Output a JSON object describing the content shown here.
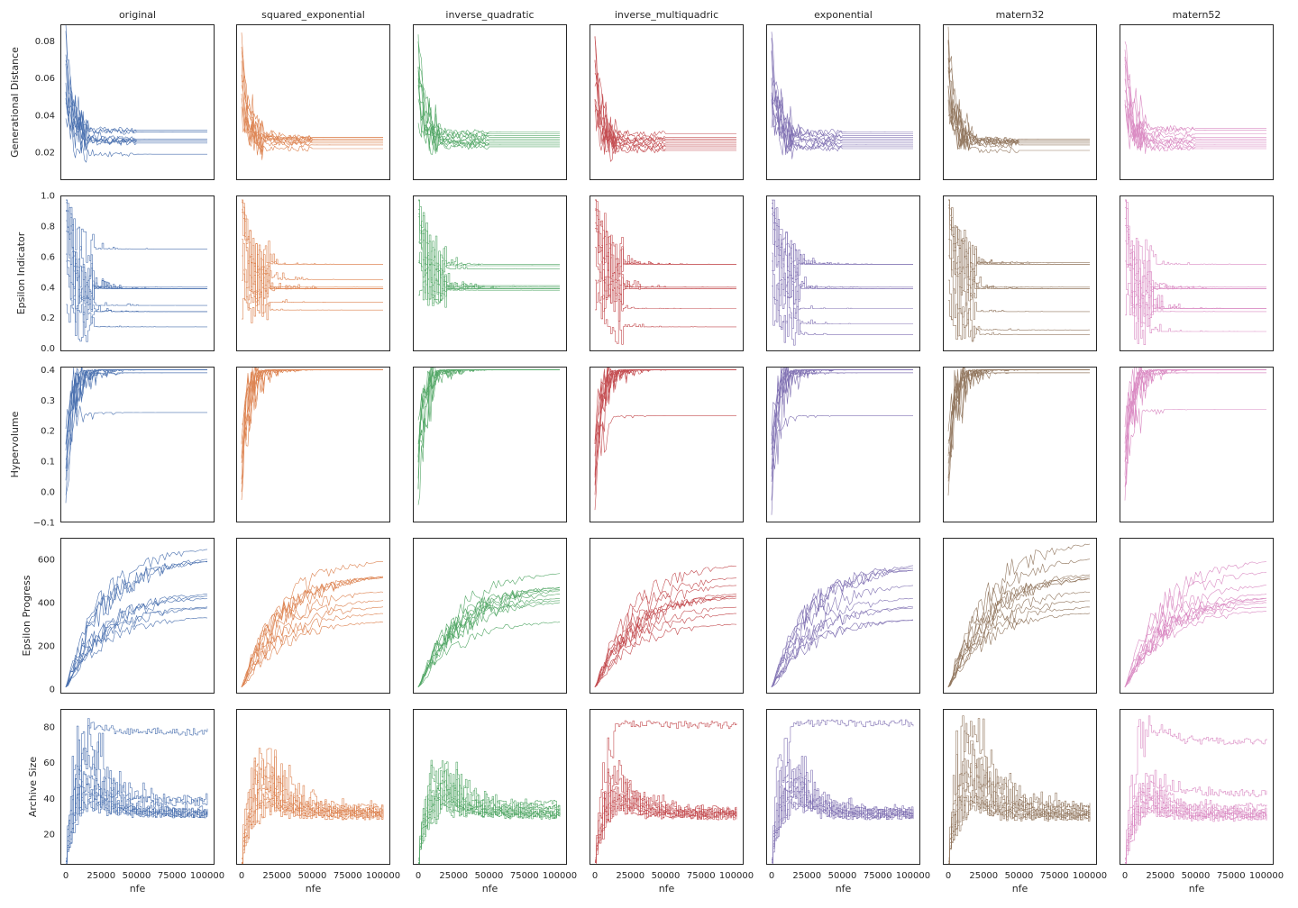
{
  "figure": {
    "columns": [
      "original",
      "squared_exponential",
      "inverse_quadratic",
      "inverse_multiquadric",
      "exponential",
      "matern32",
      "matern52"
    ],
    "column_colors": [
      "#4c72b0",
      "#dd8452",
      "#55a868",
      "#c44e52",
      "#8172b3",
      "#937860",
      "#da8bc3"
    ],
    "row_labels": [
      "Generational Distance",
      "Epsilon Indicator",
      "Hypervolume",
      "Epsilon Progress",
      "Archive Size"
    ],
    "x_label": "nfe",
    "x_ticks": [
      "0",
      "25000",
      "50000",
      "75000",
      "100000"
    ]
  },
  "chart_data": {
    "type": "line",
    "grid": false,
    "x_range": [
      0,
      100000
    ],
    "seeds_per_panel": 10,
    "rows": [
      {
        "metric": "Generational Distance",
        "ylabel": "Generational Distance",
        "ylim": [
          0.005,
          0.089
        ],
        "yticks": [
          0.02,
          0.04,
          0.06,
          0.08
        ],
        "ytick_labels": [
          "0.02",
          "0.04",
          "0.06",
          "0.08"
        ],
        "approx_final_values": {
          "original": [
            0.032,
            0.031,
            0.027,
            0.027,
            0.026,
            0.026,
            0.026,
            0.025,
            0.019,
            0.031
          ],
          "squared_exponential": [
            0.028,
            0.028,
            0.027,
            0.027,
            0.026,
            0.026,
            0.025,
            0.024,
            0.022,
            0.027
          ],
          "inverse_quadratic": [
            0.031,
            0.029,
            0.028,
            0.027,
            0.026,
            0.025,
            0.025,
            0.024,
            0.023,
            0.03
          ],
          "inverse_multiquadric": [
            0.03,
            0.028,
            0.027,
            0.026,
            0.025,
            0.024,
            0.023,
            0.022,
            0.021,
            0.027
          ],
          "exponential": [
            0.031,
            0.03,
            0.028,
            0.027,
            0.026,
            0.025,
            0.024,
            0.023,
            0.022,
            0.029
          ],
          "matern32": [
            0.027,
            0.027,
            0.026,
            0.026,
            0.026,
            0.025,
            0.025,
            0.024,
            0.021,
            0.026
          ],
          "matern52": [
            0.033,
            0.032,
            0.028,
            0.027,
            0.026,
            0.025,
            0.024,
            0.023,
            0.022,
            0.03
          ]
        },
        "approx_start_values": [
          0.082,
          0.08,
          0.075,
          0.07,
          0.065,
          0.06,
          0.055,
          0.05,
          0.045,
          0.04
        ]
      },
      {
        "metric": "Epsilon Indicator",
        "ylabel": "Epsilon Indicator",
        "ylim": [
          -0.02,
          1.0
        ],
        "yticks": [
          0.0,
          0.2,
          0.4,
          0.6,
          0.8,
          1.0
        ],
        "ytick_labels": [
          "0.0",
          "0.2",
          "0.4",
          "0.6",
          "0.8",
          "1.0"
        ],
        "approx_final_values": {
          "original": [
            0.65,
            0.4,
            0.39,
            0.39,
            0.39,
            0.28,
            0.24,
            0.24,
            0.14,
            0.39
          ],
          "squared_exponential": [
            0.55,
            0.55,
            0.45,
            0.4,
            0.39,
            0.39,
            0.3,
            0.25,
            0.39,
            0.39
          ],
          "inverse_quadratic": [
            0.55,
            0.54,
            0.52,
            0.41,
            0.4,
            0.39,
            0.39,
            0.38,
            0.39,
            0.4
          ],
          "inverse_multiquadric": [
            0.55,
            0.55,
            0.55,
            0.4,
            0.4,
            0.39,
            0.26,
            0.14,
            0.39,
            0.55
          ],
          "exponential": [
            0.55,
            0.55,
            0.55,
            0.4,
            0.39,
            0.39,
            0.26,
            0.16,
            0.09,
            0.55
          ],
          "matern32": [
            0.56,
            0.55,
            0.55,
            0.4,
            0.39,
            0.39,
            0.24,
            0.12,
            0.09,
            0.55
          ],
          "matern52": [
            0.55,
            0.4,
            0.39,
            0.39,
            0.26,
            0.26,
            0.24,
            0.11,
            0.39,
            0.26
          ]
        },
        "approx_start_values": [
          0.95,
          0.95,
          0.95,
          0.9,
          0.85,
          0.7,
          0.6,
          0.45,
          0.3,
          0.95
        ]
      },
      {
        "metric": "Hypervolume",
        "ylabel": "Hypervolume",
        "ylim": [
          -0.1,
          0.41
        ],
        "yticks": [
          -0.1,
          0.0,
          0.1,
          0.2,
          0.3,
          0.4
        ],
        "ytick_labels": [
          "−0.1",
          "0.0",
          "0.1",
          "0.2",
          "0.3",
          "0.4"
        ],
        "approx_final_values": {
          "original": [
            0.4,
            0.4,
            0.4,
            0.4,
            0.4,
            0.4,
            0.4,
            0.39,
            0.39,
            0.26
          ],
          "squared_exponential": [
            0.4,
            0.4,
            0.4,
            0.4,
            0.4,
            0.4,
            0.4,
            0.4,
            0.4,
            0.4
          ],
          "inverse_quadratic": [
            0.4,
            0.4,
            0.4,
            0.4,
            0.4,
            0.4,
            0.4,
            0.4,
            0.4,
            0.4
          ],
          "inverse_multiquadric": [
            0.4,
            0.4,
            0.4,
            0.4,
            0.4,
            0.4,
            0.4,
            0.4,
            0.4,
            0.25
          ],
          "exponential": [
            0.4,
            0.4,
            0.4,
            0.4,
            0.4,
            0.4,
            0.4,
            0.39,
            0.39,
            0.25
          ],
          "matern32": [
            0.4,
            0.4,
            0.4,
            0.4,
            0.4,
            0.4,
            0.4,
            0.4,
            0.39,
            0.39
          ],
          "matern52": [
            0.4,
            0.4,
            0.4,
            0.4,
            0.4,
            0.4,
            0.4,
            0.39,
            0.39,
            0.27
          ]
        },
        "approx_start_values": [
          0.2,
          0.15,
          0.1,
          0.05,
          0.0,
          -0.05,
          0.18,
          0.12,
          0.08,
          0.03
        ]
      },
      {
        "metric": "Epsilon Progress",
        "ylabel": "Epsilon Progress",
        "ylim": [
          -20,
          700
        ],
        "yticks": [
          0,
          200,
          400,
          600
        ],
        "ytick_labels": [
          "0",
          "200",
          "400",
          "600"
        ],
        "approx_final_values": {
          "original": [
            645,
            600,
            590,
            440,
            430,
            420,
            380,
            375,
            330,
            590
          ],
          "squared_exponential": [
            590,
            520,
            515,
            450,
            410,
            380,
            350,
            310,
            515,
            520
          ],
          "inverse_quadratic": [
            535,
            470,
            460,
            440,
            420,
            410,
            400,
            310,
            455,
            470
          ],
          "inverse_multiquadric": [
            570,
            515,
            480,
            440,
            430,
            420,
            380,
            350,
            300,
            430
          ],
          "exponential": [
            570,
            560,
            550,
            480,
            420,
            380,
            375,
            320,
            320,
            550
          ],
          "matern32": [
            670,
            600,
            530,
            520,
            510,
            450,
            410,
            380,
            350,
            510
          ],
          "matern52": [
            590,
            540,
            480,
            440,
            420,
            410,
            400,
            380,
            360,
            420
          ]
        }
      },
      {
        "metric": "Archive Size",
        "ylabel": "Archive Size",
        "ylim": [
          3,
          90
        ],
        "yticks": [
          20,
          40,
          60,
          80
        ],
        "ytick_labels": [
          "20",
          "40",
          "60",
          "80"
        ],
        "approx_final_values": {
          "original": [
            77,
            39,
            37,
            34,
            33,
            32,
            32,
            31,
            31,
            31
          ],
          "squared_exponential": [
            35,
            34,
            33,
            33,
            32,
            32,
            31,
            31,
            30,
            30
          ],
          "inverse_quadratic": [
            37,
            35,
            34,
            33,
            32,
            32,
            31,
            31,
            31,
            30
          ],
          "inverse_multiquadric": [
            81,
            34,
            33,
            32,
            32,
            31,
            31,
            31,
            30,
            30
          ],
          "exponential": [
            82,
            33,
            33,
            32,
            32,
            31,
            31,
            30,
            30,
            30
          ],
          "matern32": [
            36,
            35,
            34,
            33,
            32,
            31,
            31,
            30,
            30,
            29
          ],
          "matern52": [
            72,
            43,
            35,
            33,
            32,
            31,
            31,
            30,
            30,
            29
          ]
        },
        "approx_peak_values": {
          "original": [
            83,
            82,
            72,
            60,
            55,
            50,
            48,
            45,
            42,
            40
          ],
          "squared_exponential": [
            70,
            64,
            60,
            55,
            50,
            48,
            45,
            42,
            40,
            38
          ],
          "inverse_quadratic": [
            67,
            60,
            55,
            52,
            50,
            48,
            45,
            42,
            40,
            38
          ],
          "inverse_multiquadric": [
            84,
            60,
            55,
            50,
            48,
            45,
            42,
            40,
            38,
            36
          ],
          "exponential": [
            82,
            65,
            60,
            55,
            52,
            50,
            48,
            45,
            42,
            40
          ],
          "matern32": [
            88,
            80,
            70,
            60,
            55,
            50,
            45,
            42,
            40,
            38
          ],
          "matern52": [
            86,
            55,
            50,
            48,
            45,
            42,
            40,
            38,
            36,
            35
          ]
        }
      }
    ]
  }
}
